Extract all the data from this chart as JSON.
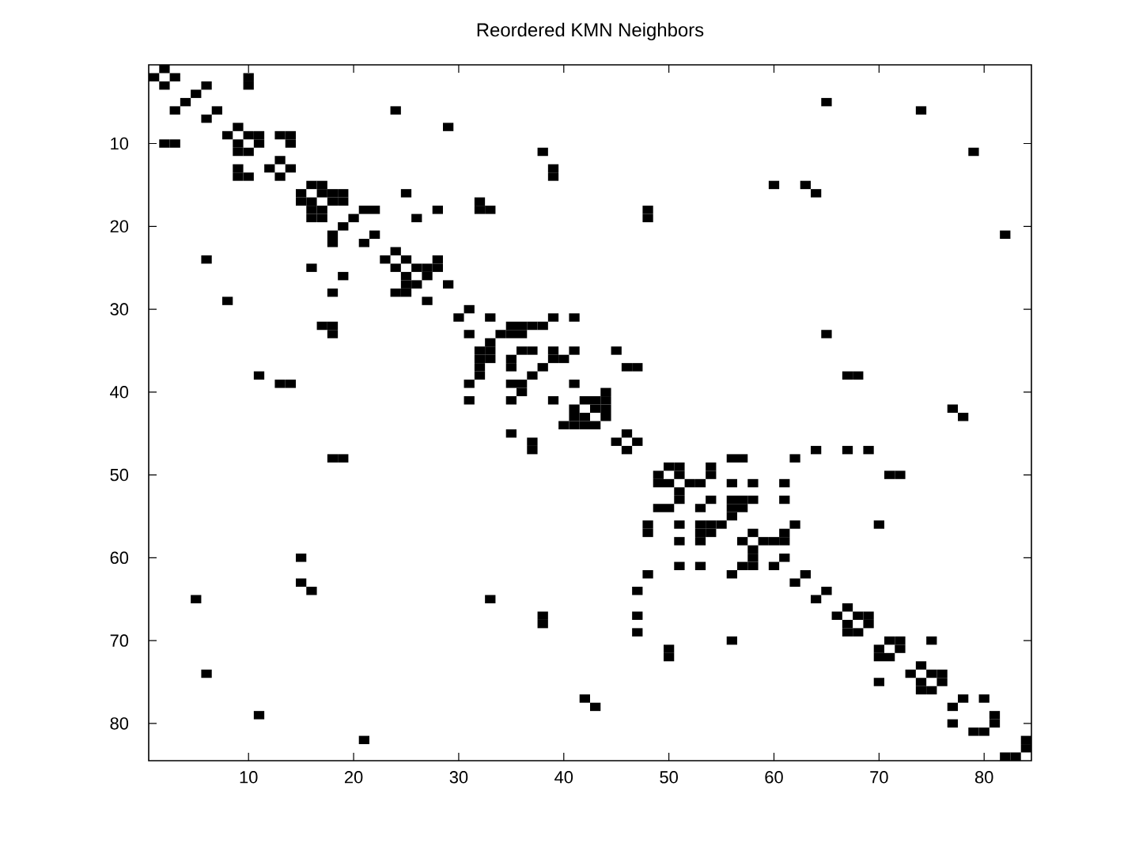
{
  "chart_data": {
    "type": "scatter",
    "title": "Reordered KMN Neighbors",
    "x": [
      2,
      1,
      3,
      2,
      10,
      2,
      6,
      3,
      10,
      3,
      5,
      4,
      65,
      5,
      7,
      6,
      24,
      6,
      74,
      6,
      9,
      8,
      29,
      8,
      10,
      9,
      11,
      9,
      13,
      9,
      14,
      9,
      11,
      10,
      14,
      10,
      38,
      11,
      79,
      11,
      13,
      12,
      14,
      13,
      39,
      13,
      39,
      14,
      16,
      15,
      17,
      15,
      60,
      15,
      63,
      15,
      17,
      16,
      18,
      16,
      19,
      16,
      25,
      16,
      64,
      16,
      18,
      17,
      19,
      17,
      32,
      17,
      21,
      18,
      22,
      18,
      28,
      18,
      32,
      18,
      33,
      18,
      48,
      18,
      20,
      19,
      26,
      19,
      48,
      19,
      22,
      21,
      82,
      21,
      24,
      23,
      25,
      24,
      28,
      24,
      26,
      25,
      27,
      25,
      28,
      25,
      27,
      26,
      29,
      27,
      31,
      30,
      33,
      31,
      39,
      31,
      41,
      31,
      35,
      32,
      36,
      32,
      37,
      32,
      38,
      32,
      34,
      33,
      35,
      33,
      36,
      33,
      65,
      33,
      36,
      35,
      37,
      35,
      39,
      35,
      41,
      35,
      45,
      35,
      39,
      36,
      40,
      36,
      38,
      37,
      46,
      37,
      47,
      37,
      67,
      38,
      68,
      38,
      41,
      39,
      44,
      40,
      42,
      41,
      43,
      41,
      44,
      41,
      43,
      42,
      44,
      42,
      77,
      42,
      44,
      43,
      78,
      43,
      46,
      45,
      47,
      46,
      64,
      47,
      67,
      47,
      69,
      47,
      56,
      48,
      57,
      48,
      62,
      48,
      50,
      49,
      51,
      49,
      54,
      49,
      51,
      50,
      54,
      50,
      71,
      50,
      72,
      50,
      52,
      51,
      53,
      51,
      56,
      51,
      58,
      51,
      61,
      51,
      54,
      53,
      56,
      53,
      57,
      53,
      58,
      53,
      61,
      53,
      56,
      54,
      57,
      54,
      56,
      55,
      62,
      56,
      70,
      56,
      58,
      57,
      61,
      57,
      59,
      58,
      60,
      58,
      61,
      58,
      61,
      60,
      63,
      62,
      65,
      64,
      67,
      66,
      68,
      67,
      69,
      67,
      69,
      68,
      71,
      70,
      72,
      70,
      75,
      70,
      72,
      71,
      74,
      73,
      75,
      74,
      76,
      74,
      76,
      75,
      78,
      77,
      80,
      77,
      81,
      79,
      81,
      80,
      84,
      82,
      84,
      83
    ],
    "values": [
      1,
      2,
      2,
      3,
      2,
      10,
      3,
      6,
      3,
      10,
      4,
      5,
      5,
      65,
      6,
      7,
      6,
      24,
      6,
      74,
      8,
      9,
      8,
      29,
      9,
      10,
      9,
      11,
      9,
      13,
      9,
      14,
      10,
      11,
      10,
      14,
      11,
      38,
      11,
      79,
      12,
      13,
      13,
      14,
      13,
      39,
      14,
      39,
      15,
      16,
      15,
      17,
      15,
      60,
      15,
      63,
      16,
      17,
      16,
      18,
      16,
      19,
      16,
      25,
      16,
      64,
      17,
      18,
      17,
      19,
      17,
      32,
      18,
      21,
      18,
      22,
      18,
      28,
      18,
      32,
      18,
      33,
      18,
      48,
      19,
      20,
      19,
      26,
      19,
      48,
      21,
      22,
      21,
      82,
      23,
      24,
      24,
      25,
      24,
      28,
      25,
      26,
      25,
      27,
      25,
      28,
      26,
      27,
      27,
      29,
      30,
      31,
      31,
      33,
      31,
      39,
      31,
      41,
      32,
      35,
      32,
      36,
      32,
      37,
      32,
      38,
      33,
      34,
      33,
      35,
      33,
      36,
      33,
      65,
      35,
      36,
      35,
      37,
      35,
      39,
      35,
      41,
      35,
      45,
      36,
      39,
      36,
      40,
      37,
      38,
      37,
      46,
      37,
      47,
      38,
      67,
      38,
      68,
      39,
      41,
      40,
      44,
      41,
      42,
      41,
      43,
      41,
      44,
      42,
      43,
      42,
      44,
      42,
      77,
      43,
      44,
      43,
      78,
      45,
      46,
      46,
      47,
      47,
      64,
      47,
      67,
      47,
      69,
      48,
      56,
      48,
      57,
      48,
      62,
      49,
      50,
      49,
      51,
      49,
      54,
      50,
      51,
      50,
      54,
      50,
      71,
      50,
      72,
      51,
      52,
      51,
      53,
      51,
      56,
      51,
      58,
      51,
      61,
      53,
      54,
      53,
      56,
      53,
      57,
      53,
      58,
      53,
      61,
      54,
      56,
      54,
      57,
      55,
      56,
      56,
      62,
      56,
      70,
      57,
      58,
      57,
      61,
      58,
      59,
      58,
      60,
      58,
      61,
      60,
      61,
      62,
      63,
      64,
      65,
      66,
      67,
      67,
      68,
      67,
      69,
      68,
      69,
      70,
      71,
      70,
      72,
      70,
      75,
      71,
      72,
      73,
      74,
      74,
      75,
      74,
      76,
      75,
      76,
      77,
      78,
      77,
      80,
      79,
      81,
      80,
      81,
      82,
      84,
      83,
      84
    ],
    "color": "#000000",
    "marker": "square",
    "xlim": [
      0.5,
      84.5
    ],
    "ylim": [
      84.5,
      0.5
    ],
    "xticks": [
      10,
      20,
      30,
      40,
      50,
      60,
      70,
      80
    ],
    "yticks": [
      10,
      20,
      30,
      40,
      50,
      60,
      70,
      80
    ]
  }
}
